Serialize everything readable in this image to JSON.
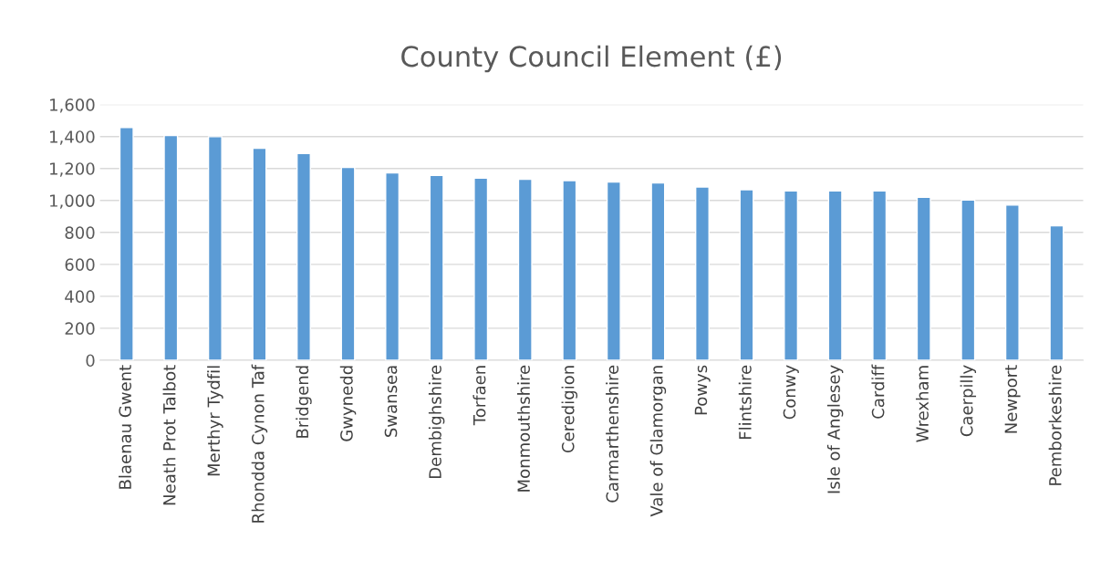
{
  "chart_data": {
    "type": "bar",
    "title": "County Council Element (£)",
    "categories": [
      "Blaenau Gwent",
      "Neath Prot Talbot",
      "Merthyr Tydfil",
      "Rhondda Cynon Taf",
      "Bridgend",
      "Gwynedd",
      "Swansea",
      "Dembighshire",
      "Torfaen",
      "Monmouthshire",
      "Ceredigion",
      "Carmarthenshire",
      "Vale of Glamorgan",
      "Powys",
      "Flintshire",
      "Conwy",
      "Isle of Anglesey",
      "Cardiff",
      "Wrexham",
      "Caerpilly",
      "Newport",
      "Pemborkeshire"
    ],
    "values": [
      1456,
      1407,
      1399,
      1327,
      1294,
      1206,
      1173,
      1157,
      1140,
      1132,
      1124,
      1116,
      1109,
      1084,
      1067,
      1060,
      1060,
      1060,
      1020,
      1003,
      971,
      842
    ],
    "color": "#5b9bd5",
    "ylim": [
      0,
      1600
    ],
    "yticks": [
      {
        "value": 0,
        "label": "0"
      },
      {
        "value": 200,
        "label": "200"
      },
      {
        "value": 400,
        "label": "400"
      },
      {
        "value": 600,
        "label": "600"
      },
      {
        "value": 800,
        "label": "800"
      },
      {
        "value": 1000,
        "label": "1,000"
      },
      {
        "value": 1200,
        "label": "1,200"
      },
      {
        "value": 1400,
        "label": "1,400"
      },
      {
        "value": 1600,
        "label": "1,600"
      }
    ],
    "grid": "y"
  }
}
